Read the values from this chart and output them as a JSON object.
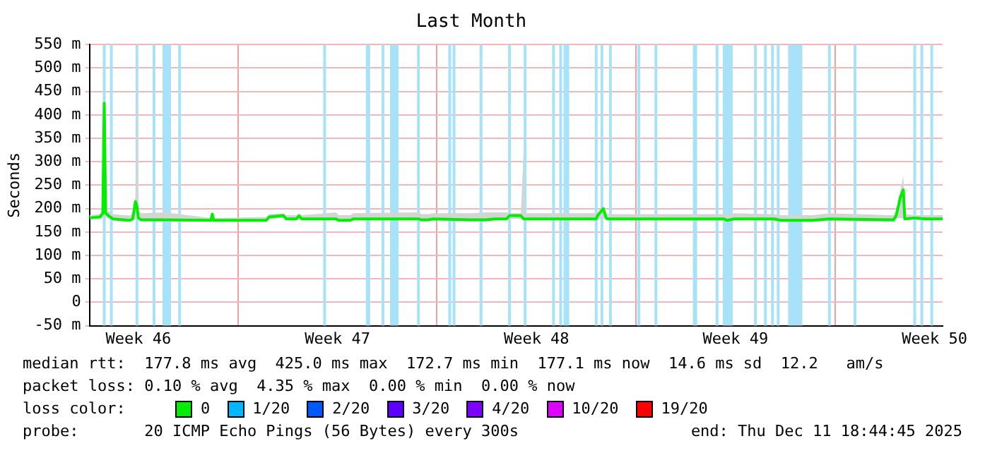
{
  "chart_data": {
    "type": "line",
    "title": "Last Month",
    "ylabel": "Seconds",
    "legend_title": "loss color:",
    "legend": "bottom",
    "grid": true,
    "marker": "none",
    "line_style": "solid",
    "xlim": [
      "2025-11-11T18:45",
      "2025-12-11T18:45"
    ],
    "xticks": [
      {
        "value": "2025-11-13T12:00",
        "label": "Week 46"
      },
      {
        "value": "2025-11-17T00:00",
        "label": null
      },
      {
        "value": "2025-11-20T12:00",
        "label": "Week 47"
      },
      {
        "value": "2025-11-24T00:00",
        "label": null
      },
      {
        "value": "2025-11-27T12:00",
        "label": "Week 48"
      },
      {
        "value": "2025-12-01T00:00",
        "label": null
      },
      {
        "value": "2025-12-04T12:00",
        "label": "Week 49"
      },
      {
        "value": "2025-12-08T00:00",
        "label": null
      },
      {
        "value": "2025-12-11T12:00",
        "label": "Week 50"
      }
    ],
    "ylim": [
      -50,
      550
    ],
    "yticks": [
      {
        "value": -50,
        "label": "-50 m"
      },
      0,
      {
        "value": 50,
        "label": "50 m"
      },
      {
        "value": 100,
        "label": "100 m"
      },
      {
        "value": 150,
        "label": "150 m"
      },
      {
        "value": 200,
        "label": "200 m"
      },
      {
        "value": 250,
        "label": "250 m"
      },
      {
        "value": 300,
        "label": "300 m"
      },
      {
        "value": 350,
        "label": "350 m"
      },
      {
        "value": 400,
        "label": "400 m"
      },
      {
        "value": 450,
        "label": "450 m"
      },
      {
        "value": 500,
        "label": "500 m"
      },
      {
        "value": 550,
        "label": "550 m"
      }
    ],
    "series": [
      {
        "name": "0",
        "color": "#00ee00",
        "x": [
          "2025-11-11T18:45",
          "2025-11-12T03:36",
          "2025-11-12T06:00",
          "2025-11-12T07:12",
          "2025-11-12T08:24",
          "2025-11-12T10:48",
          "2025-11-12T14:24",
          "2025-11-13T04:48",
          "2025-11-13T07:12",
          "2025-11-13T09:36",
          "2025-11-13T10:48",
          "2025-11-13T12:00",
          "2025-11-13T14:24",
          "2025-11-14T10:48",
          "2025-11-16T01:12",
          "2025-11-16T02:24",
          "2025-11-16T03:36",
          "2025-11-18T00:00",
          "2025-11-18T02:24",
          "2025-11-18T14:24",
          "2025-11-18T16:48",
          "2025-11-19T01:12",
          "2025-11-19T03:36",
          "2025-11-19T06:00",
          "2025-11-20T10:48",
          "2025-11-20T13:12",
          "2025-11-20T22:48",
          "2025-11-21T01:12",
          "2025-11-23T08:24",
          "2025-11-23T10:48",
          "2025-11-23T16:48",
          "2025-11-23T20:24",
          "2025-11-25T04:48",
          "2025-11-25T16:48",
          "2025-11-26T01:12",
          "2025-11-26T10:48",
          "2025-11-26T13:12",
          "2025-11-26T22:48",
          "2025-11-27T01:12",
          "2025-11-27T02:24",
          "2025-11-29T14:24",
          "2025-11-29T15:36",
          "2025-11-29T20:24",
          "2025-11-29T22:48",
          "2025-11-30T00:00",
          "2025-12-04T02:24",
          "2025-12-04T04:48",
          "2025-12-04T10:48",
          "2025-12-05T20:24",
          "2025-12-06T02:24",
          "2025-12-07T04:48",
          "2025-12-07T19:12",
          "2025-12-09T22:48",
          "2025-12-10T01:12",
          "2025-12-10T03:36",
          "2025-12-10T07:12",
          "2025-12-10T09:36",
          "2025-12-10T10:48",
          "2025-12-10T19:12",
          "2025-12-11T04:48",
          "2025-12-11T18:45"
        ],
        "values": [
          180,
          182,
          190,
          425,
          190,
          185,
          178,
          175,
          178,
          215,
          205,
          180,
          176,
          176,
          175,
          188,
          175,
          175,
          182,
          185,
          178,
          178,
          184,
          178,
          178,
          175,
          175,
          178,
          178,
          176,
          176,
          178,
          176,
          176,
          178,
          178,
          185,
          185,
          178,
          178,
          178,
          185,
          200,
          180,
          178,
          178,
          175,
          178,
          178,
          175,
          175,
          178,
          176,
          176,
          185,
          225,
          240,
          178,
          180,
          178,
          178
        ],
        "lower": [
          178,
          178,
          180,
          185,
          182,
          178,
          175,
          172,
          175,
          178,
          178,
          176,
          173,
          173,
          172,
          175,
          172,
          172,
          178,
          180,
          175,
          175,
          178,
          175,
          175,
          172,
          172,
          175,
          175,
          173,
          173,
          175,
          173,
          173,
          175,
          175,
          178,
          178,
          175,
          175,
          175,
          178,
          180,
          176,
          175,
          174,
          172,
          175,
          175,
          172,
          172,
          175,
          172,
          170,
          178,
          180,
          180,
          175,
          176,
          175,
          175
        ],
        "upper": [
          186,
          188,
          195,
          440,
          198,
          195,
          188,
          185,
          188,
          225,
          550,
          195,
          190,
          192,
          180,
          192,
          180,
          182,
          188,
          190,
          186,
          186,
          190,
          186,
          192,
          186,
          186,
          190,
          192,
          188,
          188,
          190,
          190,
          192,
          192,
          192,
          190,
          190,
          325,
          190,
          190,
          190,
          205,
          190,
          188,
          188,
          186,
          190,
          188,
          186,
          186,
          190,
          186,
          186,
          190,
          240,
          270,
          188,
          186,
          186,
          186
        ]
      },
      {
        "name": "1/20",
        "color": "#00b8ff"
      },
      {
        "name": "2/20",
        "color": "#0059ff"
      },
      {
        "name": "3/20",
        "color": "#5e00ff"
      },
      {
        "name": "4/20",
        "color": "#7e00ff"
      },
      {
        "name": "10/20",
        "color": "#dd00ff"
      },
      {
        "name": "19/20",
        "color": "#ff0000"
      }
    ],
    "bands": [
      {
        "axis": "x",
        "from": "2025-11-12T06:00",
        "to": "2025-11-12T08:24",
        "color": "#a8e2f8"
      },
      {
        "axis": "x",
        "from": "2025-11-12T12:00",
        "to": "2025-11-12T14:24",
        "color": "#a8e2f8"
      },
      {
        "axis": "x",
        "from": "2025-11-13T09:36",
        "to": "2025-11-13T12:00",
        "color": "#a8e2f8"
      },
      {
        "axis": "x",
        "from": "2025-11-14T00:00",
        "to": "2025-11-14T02:24",
        "color": "#a8e2f8"
      },
      {
        "axis": "x",
        "from": "2025-11-14T08:24",
        "to": "2025-11-14T15:36",
        "color": "#a8e2f8"
      },
      {
        "axis": "x",
        "from": "2025-11-14T21:36",
        "to": "2025-11-15T00:00",
        "color": "#a8e2f8"
      },
      {
        "axis": "x",
        "from": "2025-11-20T00:00",
        "to": "2025-11-20T02:24",
        "color": "#a8e2f8"
      },
      {
        "axis": "x",
        "from": "2025-11-21T12:00",
        "to": "2025-11-21T15:36",
        "color": "#a8e2f8"
      },
      {
        "axis": "x",
        "from": "2025-11-22T01:12",
        "to": "2025-11-22T03:36",
        "color": "#a8e2f8"
      },
      {
        "axis": "x",
        "from": "2025-11-22T08:24",
        "to": "2025-11-22T15:36",
        "color": "#a8e2f8"
      },
      {
        "axis": "x",
        "from": "2025-11-23T07:12",
        "to": "2025-11-23T09:36",
        "color": "#a8e2f8"
      },
      {
        "axis": "x",
        "from": "2025-11-24T09:36",
        "to": "2025-11-24T12:00",
        "color": "#a8e2f8"
      },
      {
        "axis": "x",
        "from": "2025-11-24T13:12",
        "to": "2025-11-24T15:36",
        "color": "#a8e2f8"
      },
      {
        "axis": "x",
        "from": "2025-11-25T12:00",
        "to": "2025-11-25T14:24",
        "color": "#a8e2f8"
      },
      {
        "axis": "x",
        "from": "2025-11-26T12:00",
        "to": "2025-11-26T14:24",
        "color": "#a8e2f8"
      },
      {
        "axis": "x",
        "from": "2025-11-27T01:12",
        "to": "2025-11-27T03:36",
        "color": "#a8e2f8"
      },
      {
        "axis": "x",
        "from": "2025-11-28T01:12",
        "to": "2025-11-28T03:36",
        "color": "#a8e2f8"
      },
      {
        "axis": "x",
        "from": "2025-11-28T07:12",
        "to": "2025-11-28T09:36",
        "color": "#a8e2f8"
      },
      {
        "axis": "x",
        "from": "2025-11-28T10:48",
        "to": "2025-11-28T15:36",
        "color": "#a8e2f8"
      },
      {
        "axis": "x",
        "from": "2025-11-29T13:12",
        "to": "2025-11-29T15:36",
        "color": "#a8e2f8"
      },
      {
        "axis": "x",
        "from": "2025-11-29T18:00",
        "to": "2025-11-29T20:24",
        "color": "#a8e2f8"
      },
      {
        "axis": "x",
        "from": "2025-11-30T01:12",
        "to": "2025-11-30T03:36",
        "color": "#a8e2f8"
      },
      {
        "axis": "x",
        "from": "2025-12-01T01:12",
        "to": "2025-12-01T03:36",
        "color": "#a8e2f8"
      },
      {
        "axis": "x",
        "from": "2025-12-01T15:36",
        "to": "2025-12-01T18:00",
        "color": "#a8e2f8"
      },
      {
        "axis": "x",
        "from": "2025-12-03T00:00",
        "to": "2025-12-03T03:36",
        "color": "#a8e2f8"
      },
      {
        "axis": "x",
        "from": "2025-12-03T19:12",
        "to": "2025-12-03T21:36",
        "color": "#a8e2f8"
      },
      {
        "axis": "x",
        "from": "2025-12-04T01:12",
        "to": "2025-12-04T09:36",
        "color": "#a8e2f8"
      },
      {
        "axis": "x",
        "from": "2025-12-05T03:36",
        "to": "2025-12-05T06:00",
        "color": "#a8e2f8"
      },
      {
        "axis": "x",
        "from": "2025-12-05T12:00",
        "to": "2025-12-05T14:24",
        "color": "#a8e2f8"
      },
      {
        "axis": "x",
        "from": "2025-12-05T18:00",
        "to": "2025-12-05T20:24",
        "color": "#a8e2f8"
      },
      {
        "axis": "x",
        "from": "2025-12-05T22:48",
        "to": "2025-12-06T01:12",
        "color": "#a8e2f8"
      },
      {
        "axis": "x",
        "from": "2025-12-06T08:24",
        "to": "2025-12-06T20:24",
        "color": "#a8e2f8"
      },
      {
        "axis": "x",
        "from": "2025-12-07T18:00",
        "to": "2025-12-07T20:24",
        "color": "#a8e2f8"
      },
      {
        "axis": "x",
        "from": "2025-12-08T15:36",
        "to": "2025-12-08T18:00",
        "color": "#a8e2f8"
      },
      {
        "axis": "x",
        "from": "2025-12-10T18:00",
        "to": "2025-12-10T20:24",
        "color": "#a8e2f8"
      },
      {
        "axis": "x",
        "from": "2025-12-11T00:00",
        "to": "2025-12-11T02:24",
        "color": "#a8e2f8"
      },
      {
        "axis": "x",
        "from": "2025-12-11T08:24",
        "to": "2025-12-11T10:48",
        "color": "#a8e2f8"
      }
    ],
    "annotations": [
      "median rtt:  177.8 ms avg  425.0 ms max  172.7 ms min  177.1 ms now  14.6 ms sd  12.2   am/s",
      "packet loss: 0.10 % avg  4.35 % max  0.00 % min  0.00 % now",
      "probe:       20 ICMP Echo Pings (56 Bytes) every 300s",
      "end: Thu Dec 11 18:44:45 2025"
    ]
  }
}
